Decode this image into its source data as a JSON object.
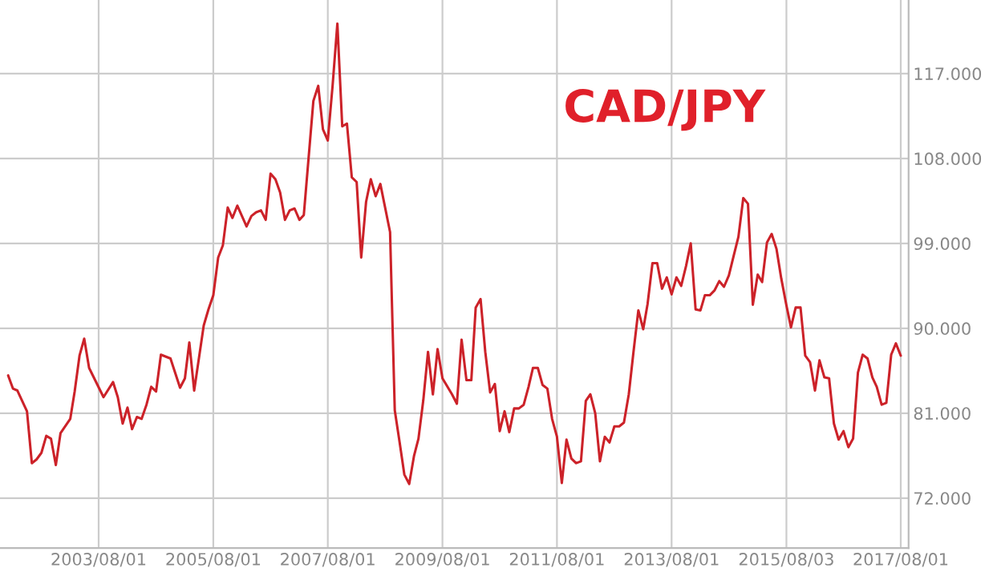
{
  "chart_data": {
    "type": "line",
    "title": "CAD/JPY",
    "x": [
      "2002-01",
      "2002-02",
      "2002-03",
      "2002-05",
      "2002-06",
      "2002-07",
      "2002-08",
      "2002-09",
      "2002-10",
      "2002-11",
      "2002-12",
      "2003-02",
      "2003-03",
      "2003-04",
      "2003-05",
      "2003-06",
      "2003-09",
      "2003-11",
      "2003-12",
      "2004-01",
      "2004-02",
      "2004-03",
      "2004-04",
      "2004-05",
      "2004-06",
      "2004-07",
      "2004-08",
      "2004-09",
      "2004-11",
      "2005-01",
      "2005-02",
      "2005-03",
      "2005-04",
      "2005-06",
      "2005-07",
      "2005-08",
      "2005-09",
      "2005-10",
      "2005-11",
      "2005-12",
      "2006-01",
      "2006-03",
      "2006-04",
      "2006-05",
      "2006-06",
      "2006-07",
      "2006-08",
      "2006-09",
      "2006-10",
      "2006-11",
      "2006-12",
      "2007-01",
      "2007-02",
      "2007-03",
      "2007-05",
      "2007-06",
      "2007-07",
      "2007-08",
      "2007-09",
      "2007-10",
      "2007-11",
      "2007-12",
      "2008-01",
      "2008-02",
      "2008-03",
      "2008-04",
      "2008-05",
      "2008-06",
      "2008-07",
      "2008-09",
      "2008-10",
      "2008-11",
      "2008-12",
      "2009-01",
      "2009-02",
      "2009-03",
      "2009-04",
      "2009-05",
      "2009-06",
      "2009-07",
      "2009-08",
      "2009-10",
      "2009-11",
      "2009-12",
      "2010-01",
      "2010-02",
      "2010-03",
      "2010-04",
      "2010-05",
      "2010-06",
      "2010-07",
      "2010-08",
      "2010-09",
      "2010-10",
      "2010-11",
      "2010-12",
      "2011-01",
      "2011-02",
      "2011-03",
      "2011-04",
      "2011-05",
      "2011-06",
      "2011-07",
      "2011-08",
      "2011-09",
      "2011-10",
      "2011-11",
      "2011-12",
      "2012-01",
      "2012-02",
      "2012-03",
      "2012-04",
      "2012-05",
      "2012-06",
      "2012-07",
      "2012-08",
      "2012-09",
      "2012-10",
      "2012-11",
      "2012-12",
      "2013-01",
      "2013-02",
      "2013-03",
      "2013-04",
      "2013-05",
      "2013-06",
      "2013-07",
      "2013-08",
      "2013-09",
      "2013-10",
      "2013-11",
      "2013-12",
      "2014-01",
      "2014-02",
      "2014-03",
      "2014-04",
      "2014-05",
      "2014-06",
      "2014-07",
      "2014-08",
      "2014-09",
      "2014-10",
      "2014-11",
      "2014-12",
      "2015-01",
      "2015-02",
      "2015-03",
      "2015-04",
      "2015-05",
      "2015-06",
      "2015-07",
      "2015-08",
      "2015-09",
      "2015-10",
      "2015-11",
      "2015-12",
      "2016-01",
      "2016-02",
      "2016-03",
      "2016-04",
      "2016-05",
      "2016-06",
      "2016-07",
      "2016-08",
      "2016-09",
      "2016-10",
      "2016-11",
      "2016-12",
      "2017-01",
      "2017-02",
      "2017-03",
      "2017-04",
      "2017-05",
      "2017-06",
      "2017-07",
      "2017-08"
    ],
    "series": [
      {
        "color": "#cc2229",
        "values": [
          85.0,
          83.6,
          83.4,
          81.2,
          75.7,
          76.1,
          76.8,
          78.6,
          78.3,
          75.5,
          78.9,
          80.4,
          83.3,
          87.1,
          88.9,
          85.8,
          82.7,
          84.3,
          82.7,
          79.9,
          81.6,
          79.3,
          80.6,
          80.4,
          81.9,
          83.8,
          83.3,
          87.2,
          86.8,
          83.7,
          84.7,
          88.5,
          83.4,
          90.3,
          92.0,
          93.5,
          97.5,
          98.8,
          102.8,
          101.7,
          103.0,
          100.8,
          101.9,
          102.3,
          102.5,
          101.5,
          106.4,
          105.8,
          104.4,
          101.5,
          102.5,
          102.7,
          101.5,
          102.0,
          114.1,
          115.7,
          111.1,
          109.9,
          115.8,
          122.3,
          111.4,
          111.7,
          106.0,
          105.5,
          97.5,
          103.4,
          105.8,
          104.0,
          105.3,
          100.2,
          81.3,
          77.9,
          74.5,
          73.5,
          76.5,
          78.3,
          82.4,
          87.5,
          83.0,
          87.8,
          84.7,
          83.0,
          82.0,
          88.8,
          84.5,
          84.5,
          92.2,
          93.1,
          87.5,
          83.2,
          84.1,
          79.1,
          81.2,
          79.0,
          81.5,
          81.5,
          81.9,
          83.8,
          85.8,
          85.8,
          84.0,
          83.6,
          80.4,
          78.5,
          73.6,
          78.2,
          76.2,
          75.7,
          75.9,
          82.3,
          83.0,
          81.0,
          75.9,
          78.5,
          77.9,
          79.6,
          79.6,
          80.0,
          83.0,
          87.5,
          91.9,
          89.9,
          92.6,
          96.9,
          96.9,
          94.2,
          95.4,
          93.6,
          95.4,
          94.5,
          96.6,
          99.0,
          92.0,
          91.9,
          93.5,
          93.5,
          94.0,
          95.0,
          94.4,
          95.6,
          97.7,
          99.7,
          103.8,
          103.2,
          92.5,
          95.7,
          94.9,
          99.1,
          100.0,
          98.4,
          95.3,
          92.6,
          90.1,
          92.2,
          92.2,
          87.1,
          86.4,
          83.4,
          86.6,
          84.8,
          84.7,
          79.9,
          78.2,
          79.1,
          77.4,
          78.3,
          85.3,
          87.2,
          86.8,
          84.8,
          83.8,
          81.9,
          82.1,
          87.2,
          88.4,
          87.1
        ]
      }
    ],
    "xlim": [
      "2001-11-10",
      "2017-09-20"
    ],
    "xticks": [
      {
        "value": "2003-08-01",
        "label": "2003/08/01"
      },
      {
        "value": "2005-08-01",
        "label": "2005/08/01"
      },
      {
        "value": "2007-08-01",
        "label": "2007/08/01"
      },
      {
        "value": "2009-08-01",
        "label": "2009/08/01"
      },
      {
        "value": "2011-08-01",
        "label": "2011/08/01"
      },
      {
        "value": "2013-08-01",
        "label": "2013/08/01"
      },
      {
        "value": "2015-08-03",
        "label": "2015/08/03"
      },
      {
        "value": "2017-08-01",
        "label": "2017/08/01"
      }
    ],
    "ylim": [
      66.7,
      124.8
    ],
    "yticks": [
      {
        "value": 72,
        "label": "72.000"
      },
      {
        "value": 81,
        "label": "81.000"
      },
      {
        "value": 90,
        "label": "90.000"
      },
      {
        "value": 99,
        "label": "99.000"
      },
      {
        "value": 108,
        "label": "108.000"
      },
      {
        "value": 117,
        "label": "117.000"
      }
    ],
    "grid": true,
    "legend": false,
    "marker": "none",
    "line_style": "solid"
  }
}
